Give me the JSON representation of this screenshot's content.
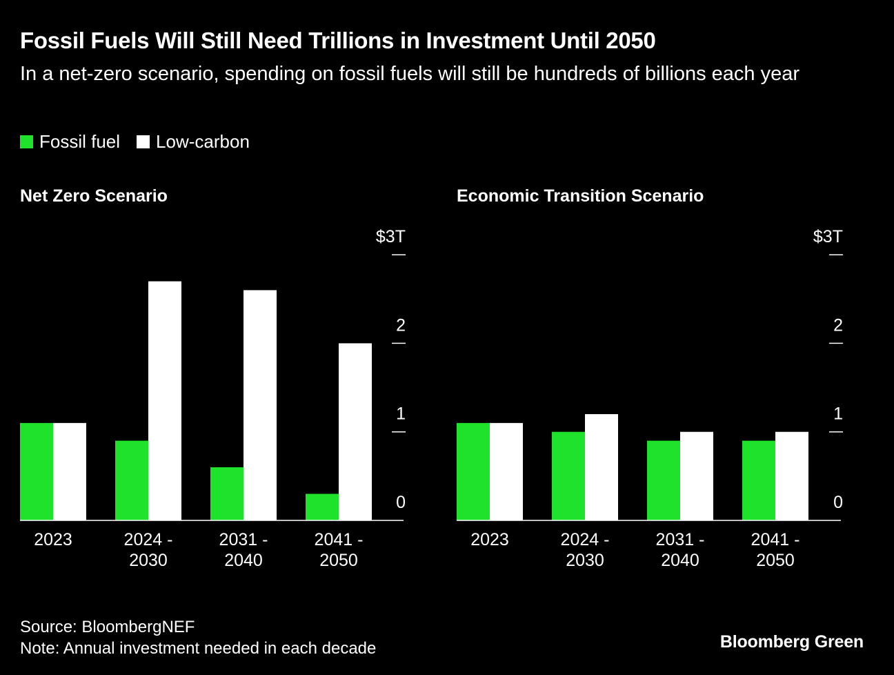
{
  "title": "Fossil Fuels Will Still Need Trillions in Investment Until 2050",
  "subtitle": "In a net-zero scenario, spending on fossil fuels will still be hundreds of billions each year",
  "legend": [
    {
      "label": "Fossil fuel",
      "color": "#1fe22a"
    },
    {
      "label": "Low-carbon",
      "color": "#ffffff"
    }
  ],
  "footer": {
    "source": "Source: BloombergNEF",
    "note": "Note: Annual investment needed in each decade"
  },
  "brand": "Bloomberg Green",
  "colors": {
    "background": "#000000",
    "fossil": "#1fe22a",
    "low_carbon": "#ffffff",
    "axis": "#ffffff"
  },
  "chart_data": [
    {
      "type": "bar",
      "title": "Net Zero Scenario",
      "categories": [
        [
          "2023"
        ],
        [
          "2024 -",
          "2030"
        ],
        [
          "2031 -",
          "2040"
        ],
        [
          "2041 -",
          "2050"
        ]
      ],
      "series": [
        {
          "name": "Fossil fuel",
          "values": [
            1.1,
            0.9,
            0.6,
            0.3
          ]
        },
        {
          "name": "Low-carbon",
          "values": [
            1.1,
            2.7,
            2.6,
            2.0
          ]
        }
      ],
      "ylim": [
        0,
        3
      ],
      "yticks": [
        0,
        1,
        2,
        3
      ],
      "ytick_labels": [
        "0",
        "1",
        "2",
        "$3T"
      ],
      "y_axis_position": "right"
    },
    {
      "type": "bar",
      "title": "Economic Transition Scenario",
      "categories": [
        [
          "2023"
        ],
        [
          "2024 -",
          "2030"
        ],
        [
          "2031 -",
          "2040"
        ],
        [
          "2041 -",
          "2050"
        ]
      ],
      "series": [
        {
          "name": "Fossil fuel",
          "values": [
            1.1,
            1.0,
            0.9,
            0.9
          ]
        },
        {
          "name": "Low-carbon",
          "values": [
            1.1,
            1.2,
            1.0,
            1.0
          ]
        }
      ],
      "ylim": [
        0,
        3
      ],
      "yticks": [
        0,
        1,
        2,
        3
      ],
      "ytick_labels": [
        "0",
        "1",
        "2",
        "$3T"
      ],
      "y_axis_position": "right"
    }
  ]
}
